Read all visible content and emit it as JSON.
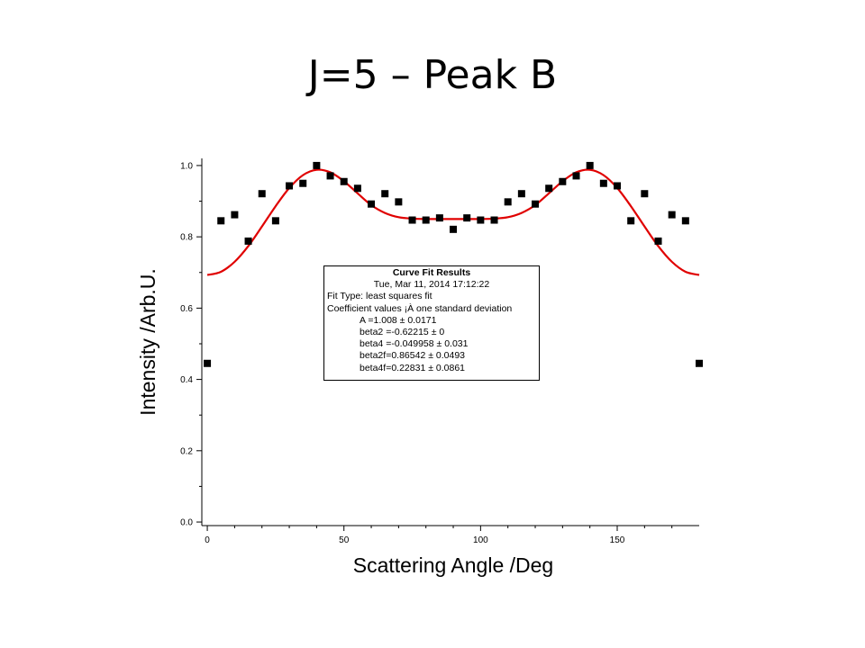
{
  "title": "J=5 – Peak B",
  "fit_results": {
    "heading": "Curve Fit Results",
    "timestamp": "Tue, Mar 11, 2014 17:12:22",
    "fit_type": "Fit Type: least squares fit",
    "coef_header": "Coefficient values ¡À one standard deviation",
    "coefficients": [
      "A      =1.008 ± 0.0171",
      "beta2 =-0.62215 ± 0",
      "beta4 =-0.049958 ± 0.031",
      "beta2f=0.86542 ± 0.0493",
      "beta4f=0.22831 ± 0.0861"
    ]
  },
  "chart_data": {
    "type": "scatter",
    "xlabel": "Scattering Angle /Deg",
    "ylabel": "Intensity /Arb.U.",
    "xlim": [
      -2,
      180
    ],
    "ylim": [
      -0.01,
      1.02
    ],
    "x_ticks": [
      0,
      50,
      100,
      150
    ],
    "y_ticks": [
      0.0,
      0.2,
      0.4,
      0.6,
      0.8,
      1.0
    ],
    "y_tick_labels": [
      "0.0",
      "0.2",
      "0.4",
      "0.6",
      "0.8",
      "1.0"
    ],
    "grid": false,
    "fit_color": "#e00000",
    "marker_color": "#000000",
    "series": [
      {
        "kind": "points",
        "x": [
          0,
          5,
          10,
          15,
          20,
          25,
          30,
          35,
          40,
          45,
          50,
          55,
          60,
          65,
          70,
          75,
          80,
          85,
          90,
          95,
          100,
          105,
          110,
          115,
          120,
          125,
          130,
          135,
          140,
          145,
          150,
          155,
          160,
          165,
          170,
          175,
          180
        ],
        "y": [
          0.445,
          0.845,
          0.862,
          0.788,
          0.921,
          0.845,
          0.943,
          0.95,
          1.0,
          0.971,
          0.955,
          0.936,
          0.892,
          0.921,
          0.898,
          0.847,
          0.847,
          0.853,
          0.821,
          0.853,
          0.847,
          0.847,
          0.898,
          0.921,
          0.892,
          0.936,
          0.955,
          0.971,
          1.0,
          0.95,
          0.943,
          0.845,
          0.921,
          0.788,
          0.862,
          0.845,
          0.445
        ]
      },
      {
        "kind": "fit",
        "x": [
          0,
          5,
          10,
          15,
          20,
          25,
          30,
          35,
          40,
          45,
          50,
          55,
          60,
          65,
          70,
          75,
          80,
          85,
          90,
          95,
          100,
          105,
          110,
          115,
          120,
          125,
          130,
          135,
          140,
          145,
          150,
          155,
          160,
          165,
          170,
          175,
          180
        ],
        "y": [
          0.693,
          0.702,
          0.73,
          0.774,
          0.829,
          0.886,
          0.937,
          0.973,
          0.988,
          0.981,
          0.956,
          0.922,
          0.889,
          0.867,
          0.855,
          0.851,
          0.85,
          0.85,
          0.85,
          0.85,
          0.85,
          0.851,
          0.855,
          0.867,
          0.889,
          0.922,
          0.956,
          0.981,
          0.988,
          0.973,
          0.937,
          0.886,
          0.829,
          0.774,
          0.73,
          0.702,
          0.693
        ]
      }
    ]
  }
}
